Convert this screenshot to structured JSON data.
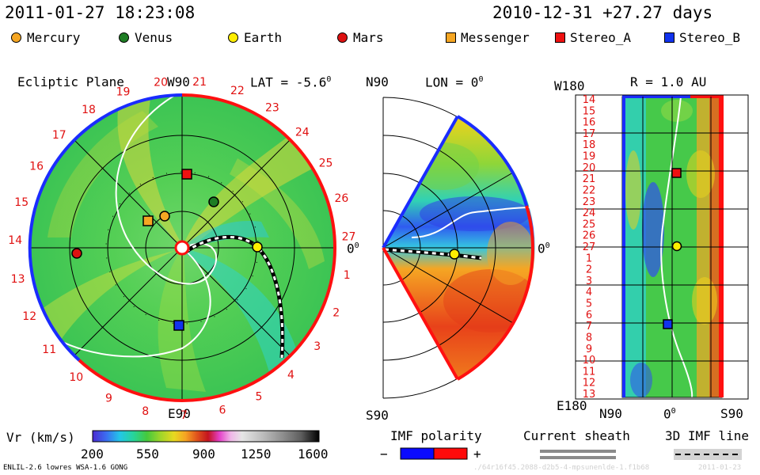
{
  "header": {
    "datetime": "2011-01-27 18:23:08",
    "reference": "2010-12-31 +27.27 days"
  },
  "legend": [
    {
      "name": "Mercury",
      "shape": "circle",
      "color": "#f5a623"
    },
    {
      "name": "Venus",
      "shape": "circle",
      "color": "#1e7d24"
    },
    {
      "name": "Earth",
      "shape": "circle",
      "color": "#ffee00"
    },
    {
      "name": "Mars",
      "shape": "circle",
      "color": "#dd1111"
    },
    {
      "name": "Messenger",
      "shape": "square",
      "color": "#f5a623"
    },
    {
      "name": "Stereo_A",
      "shape": "square",
      "color": "#ee1111"
    },
    {
      "name": "Stereo_B",
      "shape": "square",
      "color": "#1133ee"
    }
  ],
  "ecliptic": {
    "title": "Ecliptic Plane",
    "top_label": "W90",
    "bottom_label": "E90",
    "lat_label": "LAT = -5.6",
    "lat_sup": "0",
    "right_label": "0",
    "right_sup": "0",
    "rim_days": [
      "1",
      "2",
      "3",
      "4",
      "5",
      "6",
      "7",
      "8",
      "9",
      "10",
      "11",
      "12",
      "13",
      "14",
      "15",
      "16",
      "17",
      "18",
      "19",
      "20",
      "21",
      "22",
      "23",
      "24",
      "25",
      "26",
      "27"
    ]
  },
  "meridional": {
    "top_label": "N90",
    "bottom_label": "S90",
    "lon_label": "LON = 0",
    "lon_sup": "0",
    "right_label": "0",
    "right_sup": "0"
  },
  "synoptic": {
    "top_label": "W180",
    "bottom_label": "E180",
    "r_label": "R = 1.0 AU",
    "x_left": "N90",
    "x_mid": "0",
    "x_mid_sup": "0",
    "x_right": "S90",
    "y_days": [
      "14",
      "15",
      "16",
      "17",
      "18",
      "19",
      "20",
      "21",
      "22",
      "23",
      "24",
      "25",
      "26",
      "27",
      "1",
      "2",
      "3",
      "4",
      "5",
      "6",
      "7",
      "8",
      "9",
      "10",
      "11",
      "12",
      "13"
    ]
  },
  "colorbar": {
    "label": "Vr (km/s)",
    "ticks": [
      "200",
      "550",
      "900",
      "1250",
      "1600"
    ],
    "colors": [
      "#4b2bd1",
      "#3b6df0",
      "#23c6e8",
      "#27d49a",
      "#45c93c",
      "#9fd52a",
      "#e8d820",
      "#f5a423",
      "#e0541c",
      "#c4141f",
      "#e540c8",
      "#f0b6e8",
      "#e6e6e6",
      "#bdbdbd",
      "#8e8e8e",
      "#5f5f5f",
      "#2a2a2a",
      "#000000"
    ]
  },
  "imf_polarity": {
    "label": "IMF polarity",
    "minus": "−",
    "plus": "+",
    "neg_color": "#0a0aff",
    "pos_color": "#ff0a0a"
  },
  "current_sheath": {
    "label": "Current sheath"
  },
  "imf_line": {
    "label": "3D IMF line"
  },
  "footer": {
    "model": "ENLIL-2.6 lowres WSA-1.6 GONG",
    "run_id": "./64r16f45.2088-d2b5-4-mpsunenlde-1.f1b68",
    "run_date": "2011-01-23"
  }
}
